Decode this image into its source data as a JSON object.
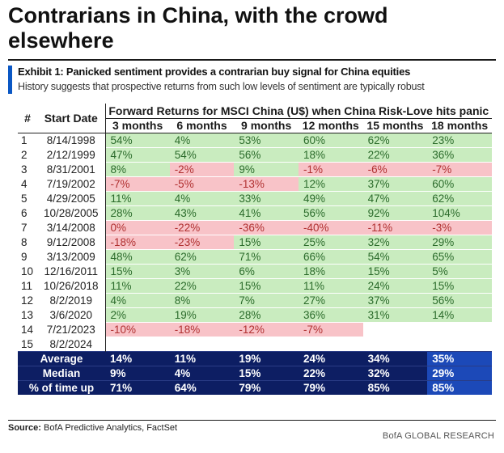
{
  "header": {
    "title": "Contrarians in China, with the crowd elsewhere",
    "exhibit_title": "Exhibit 1: Panicked sentiment provides a contrarian buy signal for China equities",
    "exhibit_subtitle": "History suggests that prospective returns from such low levels of sentiment are typically robust"
  },
  "table": {
    "col_num": "#",
    "col_date": "Start Date",
    "group_header": "Forward Returns for MSCI China (U$) when China Risk-Love hits panic",
    "periods": [
      "3 months",
      "6 months",
      "9 months",
      "12 months",
      "15 months",
      "18 months"
    ],
    "rows": [
      {
        "num": "1",
        "date": "8/14/1998",
        "values": [
          "54%",
          "4%",
          "53%",
          "60%",
          "62%",
          "23%"
        ],
        "signs": [
          "pos",
          "pos",
          "pos",
          "pos",
          "pos",
          "pos"
        ]
      },
      {
        "num": "2",
        "date": "2/12/1999",
        "values": [
          "47%",
          "54%",
          "56%",
          "18%",
          "22%",
          "36%"
        ],
        "signs": [
          "pos",
          "pos",
          "pos",
          "pos",
          "pos",
          "pos"
        ]
      },
      {
        "num": "3",
        "date": "8/31/2001",
        "values": [
          "8%",
          "-2%",
          "9%",
          "-1%",
          "-6%",
          "-7%"
        ],
        "signs": [
          "pos",
          "neg",
          "pos",
          "neg",
          "neg",
          "neg"
        ]
      },
      {
        "num": "4",
        "date": "7/19/2002",
        "values": [
          "-7%",
          "-5%",
          "-13%",
          "12%",
          "37%",
          "60%"
        ],
        "signs": [
          "neg",
          "neg",
          "neg",
          "pos",
          "pos",
          "pos"
        ]
      },
      {
        "num": "5",
        "date": "4/29/2005",
        "values": [
          "11%",
          "4%",
          "33%",
          "49%",
          "47%",
          "62%"
        ],
        "signs": [
          "pos",
          "pos",
          "pos",
          "pos",
          "pos",
          "pos"
        ]
      },
      {
        "num": "6",
        "date": "10/28/2005",
        "values": [
          "28%",
          "43%",
          "41%",
          "56%",
          "92%",
          "104%"
        ],
        "signs": [
          "pos",
          "pos",
          "pos",
          "pos",
          "pos",
          "pos"
        ]
      },
      {
        "num": "7",
        "date": "3/14/2008",
        "values": [
          "0%",
          "-22%",
          "-36%",
          "-40%",
          "-11%",
          "-3%"
        ],
        "signs": [
          "neg",
          "neg",
          "neg",
          "neg",
          "neg",
          "neg"
        ]
      },
      {
        "num": "8",
        "date": "9/12/2008",
        "values": [
          "-18%",
          "-23%",
          "15%",
          "25%",
          "32%",
          "29%"
        ],
        "signs": [
          "neg",
          "neg",
          "pos",
          "pos",
          "pos",
          "pos"
        ]
      },
      {
        "num": "9",
        "date": "3/13/2009",
        "values": [
          "48%",
          "62%",
          "71%",
          "66%",
          "54%",
          "65%"
        ],
        "signs": [
          "pos",
          "pos",
          "pos",
          "pos",
          "pos",
          "pos"
        ]
      },
      {
        "num": "10",
        "date": "12/16/2011",
        "values": [
          "15%",
          "3%",
          "6%",
          "18%",
          "15%",
          "5%"
        ],
        "signs": [
          "pos",
          "pos",
          "pos",
          "pos",
          "pos",
          "pos"
        ]
      },
      {
        "num": "11",
        "date": "10/26/2018",
        "values": [
          "11%",
          "22%",
          "15%",
          "11%",
          "24%",
          "15%"
        ],
        "signs": [
          "pos",
          "pos",
          "pos",
          "pos",
          "pos",
          "pos"
        ]
      },
      {
        "num": "12",
        "date": "8/2/2019",
        "values": [
          "4%",
          "8%",
          "7%",
          "27%",
          "37%",
          "56%"
        ],
        "signs": [
          "pos",
          "pos",
          "pos",
          "pos",
          "pos",
          "pos"
        ]
      },
      {
        "num": "13",
        "date": "3/6/2020",
        "values": [
          "2%",
          "19%",
          "28%",
          "36%",
          "31%",
          "14%"
        ],
        "signs": [
          "pos",
          "pos",
          "pos",
          "pos",
          "pos",
          "pos"
        ]
      },
      {
        "num": "14",
        "date": "7/21/2023",
        "values": [
          "-10%",
          "-18%",
          "-12%",
          "-7%",
          "",
          ""
        ],
        "signs": [
          "neg",
          "neg",
          "neg",
          "neg",
          "empty",
          "empty"
        ]
      },
      {
        "num": "15",
        "date": "8/2/2024",
        "values": [
          "",
          "",
          "",
          "",
          "",
          ""
        ],
        "signs": [
          "empty",
          "empty",
          "empty",
          "empty",
          "empty",
          "empty"
        ]
      }
    ],
    "summary": [
      {
        "label": "Average",
        "values": [
          "14%",
          "11%",
          "19%",
          "24%",
          "34%",
          "35%"
        ]
      },
      {
        "label": "Median",
        "values": [
          "9%",
          "4%",
          "15%",
          "22%",
          "32%",
          "29%"
        ]
      },
      {
        "label": "% of time up",
        "values": [
          "71%",
          "64%",
          "79%",
          "79%",
          "85%",
          "85%"
        ]
      }
    ],
    "colors": {
      "positive_fill": "#c9ecbf",
      "negative_fill": "#f8c3c8",
      "summary_fill": "#0d1e63",
      "highlight_fill": "#1c49b8",
      "accent_bar": "#0a57c4"
    }
  },
  "footer": {
    "source_label": "Source:",
    "source_text": "BofA Predictive Analytics, FactSet",
    "credit": "BofA GLOBAL RESEARCH"
  }
}
